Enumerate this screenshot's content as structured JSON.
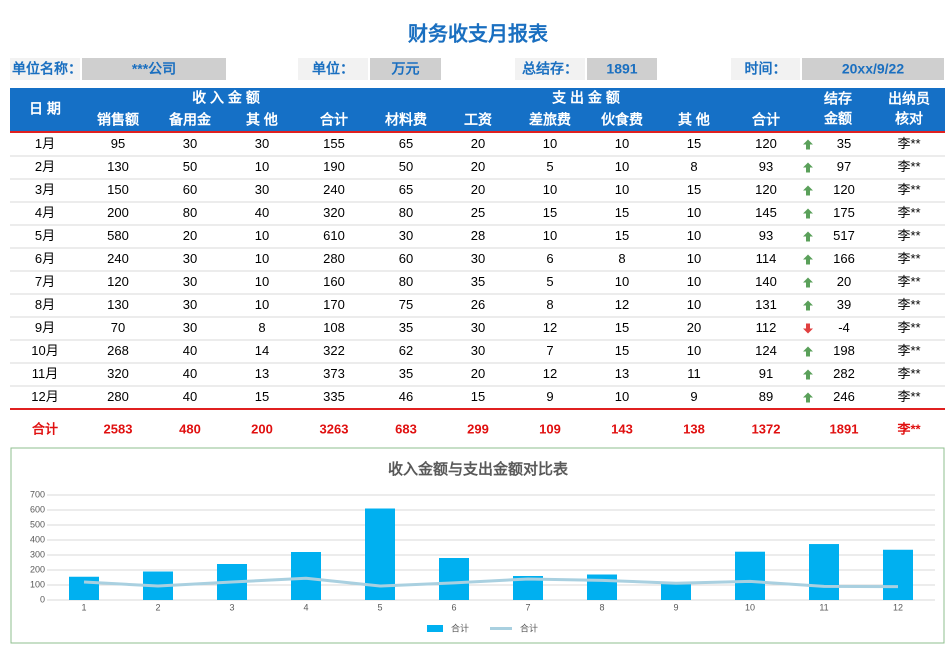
{
  "title": "财务收支月报表",
  "info": [
    {
      "label": "单位名称：",
      "value": "***公司"
    },
    {
      "label": "单位：",
      "value": "万元"
    },
    {
      "label": "总结存：",
      "value": 1891
    },
    {
      "label": "时间：",
      "value": "20xx/9/22"
    }
  ],
  "table": {
    "header": {
      "date": "日 期",
      "income": "收 入 金 额",
      "expense": "支 出 金 额",
      "balance": [
        "结存",
        "金额"
      ],
      "cashier": [
        "出纳员",
        "核对"
      ]
    },
    "columns": [
      "销售额",
      "备用金",
      "其 他",
      "合计",
      "材料费",
      "工资",
      "差旅费",
      "伙食费",
      "其 他",
      "合计"
    ],
    "rows": [
      [
        "1月",
        95,
        30,
        30,
        155,
        65,
        20,
        10,
        10,
        15,
        120,
        35,
        "李**"
      ],
      [
        "2月",
        130,
        50,
        10,
        190,
        50,
        20,
        5,
        10,
        8,
        93,
        97,
        "李**"
      ],
      [
        "3月",
        150,
        60,
        30,
        240,
        65,
        20,
        10,
        10,
        15,
        120,
        120,
        "李**"
      ],
      [
        "4月",
        200,
        80,
        40,
        320,
        80,
        25,
        15,
        15,
        10,
        145,
        175,
        "李**"
      ],
      [
        "5月",
        580,
        20,
        10,
        610,
        30,
        28,
        10,
        15,
        10,
        93,
        517,
        "李**"
      ],
      [
        "6月",
        240,
        30,
        10,
        280,
        60,
        30,
        6,
        8,
        10,
        114,
        166,
        "李**"
      ],
      [
        "7月",
        120,
        30,
        10,
        160,
        80,
        35,
        5,
        10,
        10,
        140,
        20,
        "李**"
      ],
      [
        "8月",
        130,
        30,
        10,
        170,
        75,
        26,
        8,
        12,
        10,
        131,
        39,
        "李**"
      ],
      [
        "9月",
        70,
        30,
        8,
        108,
        35,
        30,
        12,
        15,
        20,
        112,
        -4,
        "李**"
      ],
      [
        "10月",
        268,
        40,
        14,
        322,
        62,
        30,
        7,
        15,
        10,
        124,
        198,
        "李**"
      ],
      [
        "11月",
        320,
        40,
        13,
        373,
        35,
        20,
        12,
        13,
        11,
        91,
        282,
        "李**"
      ],
      [
        "12月",
        280,
        40,
        15,
        335,
        46,
        15,
        9,
        10,
        9,
        89,
        246,
        "李**"
      ]
    ],
    "total": [
      "合计",
      2583,
      480,
      200,
      3263,
      683,
      299,
      109,
      143,
      138,
      1372,
      1891,
      "李**"
    ]
  },
  "chart_data": {
    "type": "bar",
    "title": "收入金额与支出金额对比表",
    "categories": [
      1,
      2,
      3,
      4,
      5,
      6,
      7,
      8,
      9,
      10,
      11,
      12
    ],
    "series": [
      {
        "name": "合计",
        "type": "bar",
        "color": "#00b0f0",
        "values": [
          155,
          190,
          240,
          320,
          610,
          280,
          160,
          170,
          108,
          322,
          373,
          335
        ]
      },
      {
        "name": "合计",
        "type": "line",
        "color": "#a9d0e0",
        "values": [
          120,
          93,
          120,
          145,
          93,
          114,
          140,
          131,
          112,
          124,
          91,
          89
        ]
      }
    ],
    "ylim": [
      0,
      700
    ],
    "yticks": [
      0,
      100,
      200,
      300,
      400,
      500,
      600,
      700
    ],
    "grid": true,
    "legend": "bottom"
  }
}
